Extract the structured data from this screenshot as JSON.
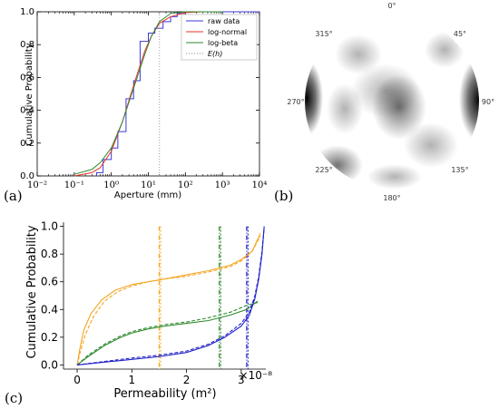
{
  "chart_data": [
    {
      "panel": "(a)",
      "type": "line",
      "xlabel": "Aperture (mm)",
      "ylabel": "Cumulative Probability",
      "xscale": "log",
      "xlim": [
        0.01,
        10000
      ],
      "ylim": [
        0,
        1
      ],
      "xtick_labels": [
        "10⁻²",
        "10⁻¹",
        "10⁰",
        "10¹",
        "10²",
        "10³",
        "10⁴"
      ],
      "ytick_labels": [
        "0.0",
        "0.2",
        "0.4",
        "0.6",
        "0.8",
        "1.0"
      ],
      "legend_position": "top-right",
      "series": [
        {
          "name": "raw data",
          "color": "#3a3ad8",
          "style": "step",
          "x": [
            0.4,
            0.6,
            1,
            1.5,
            2.5,
            4,
            6,
            10,
            15,
            25,
            40,
            60,
            100,
            200
          ],
          "y": [
            0.02,
            0.1,
            0.17,
            0.27,
            0.47,
            0.58,
            0.82,
            0.87,
            0.9,
            0.94,
            0.97,
            0.99,
            1.0,
            1.0
          ]
        },
        {
          "name": "log-normal",
          "color": "#e8312a",
          "style": "solid",
          "x": [
            0.1,
            0.3,
            0.5,
            1,
            2,
            3,
            5,
            8,
            12,
            20,
            40,
            100,
            300,
            1000
          ],
          "y": [
            0.0,
            0.02,
            0.05,
            0.15,
            0.33,
            0.46,
            0.62,
            0.76,
            0.85,
            0.93,
            0.97,
            0.995,
            1.0,
            1.0
          ]
        },
        {
          "name": "log-beta",
          "color": "#2f8a2f",
          "style": "solid",
          "x": [
            0.1,
            0.3,
            0.5,
            1,
            2,
            3,
            5,
            8,
            12,
            20,
            40,
            100,
            300,
            1000
          ],
          "y": [
            0.01,
            0.04,
            0.08,
            0.17,
            0.33,
            0.45,
            0.6,
            0.74,
            0.85,
            0.94,
            0.99,
            1.0,
            1.0,
            1.0
          ]
        },
        {
          "name": "E(h)",
          "color": "#888888",
          "style": "dotted-vertical",
          "x": [
            20
          ]
        }
      ]
    },
    {
      "panel": "(b)",
      "type": "heatmap",
      "projection": "polar",
      "angle_labels": [
        "0°",
        "45°",
        "90°",
        "135°",
        "180°",
        "225°",
        "270°",
        "315°"
      ],
      "angles": [
        0,
        45,
        90,
        135,
        180,
        225,
        270,
        315
      ],
      "colors": {
        "low": "#ffffff",
        "high": "#000000"
      }
    },
    {
      "panel": "(c)",
      "type": "line",
      "xlabel": "Permeability (m²)",
      "ylabel": "Cumulative Probability",
      "x_multiplier": "×10⁻⁸",
      "xlim": [
        -0.25,
        3.45
      ],
      "ylim": [
        -0.03,
        1.03
      ],
      "xticks": [
        0,
        1,
        2,
        3
      ],
      "yticks": [
        "0.0",
        "0.2",
        "0.4",
        "0.6",
        "0.8",
        "1.0"
      ],
      "series": [
        {
          "color": "#f5a623",
          "style": "solid",
          "x": [
            0,
            0.05,
            0.12,
            0.25,
            0.45,
            0.7,
            1.0,
            1.3,
            1.6,
            2.0,
            2.4,
            2.8,
            3.0,
            3.2,
            3.35
          ],
          "y": [
            0.0,
            0.12,
            0.25,
            0.37,
            0.47,
            0.54,
            0.58,
            0.6,
            0.62,
            0.65,
            0.68,
            0.72,
            0.76,
            0.82,
            0.95
          ]
        },
        {
          "color": "#f5a623",
          "style": "dashed",
          "x": [
            0,
            0.06,
            0.15,
            0.3,
            0.5,
            0.75,
            1.0,
            1.3,
            1.6,
            2.0,
            2.4,
            2.8,
            3.0,
            3.2,
            3.35
          ],
          "y": [
            0.0,
            0.1,
            0.22,
            0.35,
            0.46,
            0.53,
            0.57,
            0.6,
            0.62,
            0.64,
            0.67,
            0.71,
            0.75,
            0.82,
            0.93
          ]
        },
        {
          "color": "#2f8a2f",
          "style": "solid",
          "x": [
            0,
            0.2,
            0.5,
            0.8,
            1.0,
            1.3,
            1.6,
            2.0,
            2.4,
            2.8,
            3.1,
            3.3
          ],
          "y": [
            0.0,
            0.06,
            0.14,
            0.2,
            0.23,
            0.26,
            0.28,
            0.3,
            0.32,
            0.36,
            0.4,
            0.46
          ]
        },
        {
          "color": "#2f8a2f",
          "style": "dashed",
          "x": [
            0,
            0.2,
            0.5,
            0.8,
            1.0,
            1.3,
            1.6,
            2.0,
            2.4,
            2.8,
            3.1,
            3.3
          ],
          "y": [
            0.0,
            0.07,
            0.15,
            0.21,
            0.24,
            0.27,
            0.29,
            0.31,
            0.34,
            0.38,
            0.43,
            0.45
          ]
        },
        {
          "color": "#2020c8",
          "style": "solid",
          "x": [
            0,
            0.5,
            1.0,
            1.5,
            2.0,
            2.4,
            2.7,
            3.0,
            3.15,
            3.25,
            3.32,
            3.38,
            3.42
          ],
          "y": [
            0.0,
            0.02,
            0.04,
            0.06,
            0.09,
            0.14,
            0.2,
            0.28,
            0.36,
            0.48,
            0.62,
            0.8,
            1.0
          ]
        },
        {
          "color": "#2020c8",
          "style": "dashed",
          "x": [
            0,
            0.5,
            1.0,
            1.5,
            2.0,
            2.4,
            2.7,
            3.0,
            3.15,
            3.25,
            3.32,
            3.38,
            3.42
          ],
          "y": [
            0.0,
            0.025,
            0.05,
            0.07,
            0.1,
            0.15,
            0.21,
            0.3,
            0.38,
            0.5,
            0.64,
            0.82,
            0.99
          ]
        }
      ],
      "vlines": [
        {
          "x": 1.5,
          "color": "#f5a623"
        },
        {
          "x": 2.6,
          "color": "#2f8a2f"
        },
        {
          "x": 3.1,
          "color": "#2020c8"
        }
      ]
    }
  ],
  "panel_labels": {
    "a": "(a)",
    "b": "(b)",
    "c": "(c)"
  }
}
